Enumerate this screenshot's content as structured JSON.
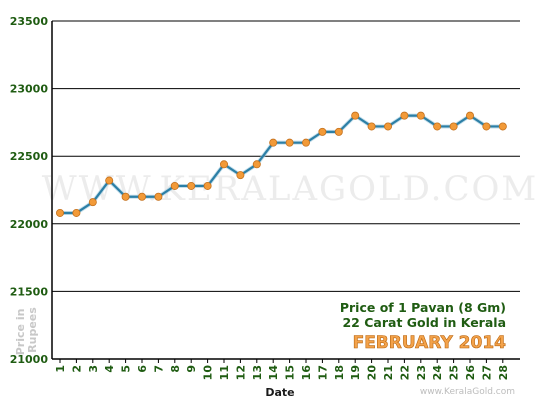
{
  "chart_data": {
    "type": "line",
    "x": [
      1,
      2,
      3,
      4,
      5,
      6,
      7,
      8,
      9,
      10,
      11,
      12,
      13,
      14,
      15,
      16,
      17,
      18,
      19,
      20,
      21,
      22,
      23,
      24,
      25,
      26,
      27,
      28
    ],
    "values": [
      22080,
      22080,
      22160,
      22320,
      22200,
      22200,
      22200,
      22280,
      22280,
      22280,
      22440,
      22360,
      22440,
      22600,
      22600,
      22600,
      22680,
      22680,
      22800,
      22720,
      22720,
      22800,
      22800,
      22720,
      22720,
      22800,
      22720,
      22720
    ],
    "ylim": [
      21000,
      23500
    ],
    "yticks": [
      21000,
      21500,
      22000,
      22500,
      23000,
      23500
    ],
    "xlabel": "Date",
    "ylabel": "Price in Rupees",
    "grid": true,
    "colors": {
      "line": "#2c7fa6",
      "marker": "#f29a38",
      "grid": "#000000",
      "axis": "#000000",
      "text": "#1f5c12"
    }
  },
  "info": {
    "line1": "Price of 1 Pavan (8 Gm)",
    "line2": "22 Carat Gold in Kerala",
    "line3": "FEBRUARY 2014"
  },
  "watermark": "WWW.KERALAGOLD.COM",
  "source": "www.KeralaGold.com"
}
